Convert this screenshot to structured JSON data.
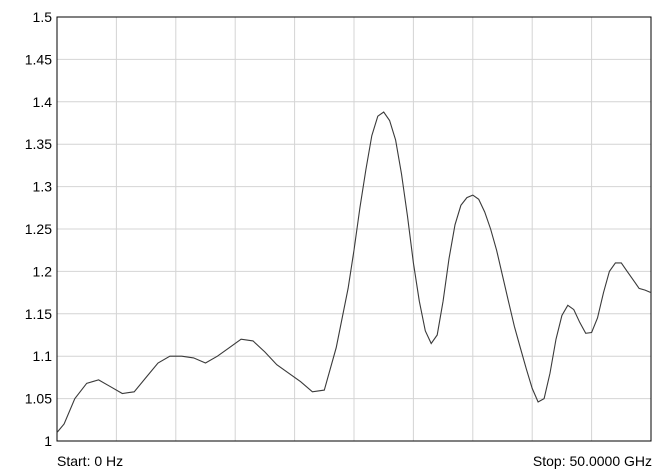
{
  "chart_data": {
    "type": "line",
    "title": "",
    "xlabel": "",
    "ylabel": "",
    "xlim": [
      0,
      50
    ],
    "x_unit": "GHz",
    "ylim": [
      1,
      1.5
    ],
    "yticks": [
      "1",
      "1.05",
      "1.1",
      "1.15",
      "1.2",
      "1.25",
      "1.3",
      "1.35",
      "1.4",
      "1.45",
      "1.5"
    ],
    "x_grid_divisions": 10,
    "grid": true,
    "legend": "none",
    "start_label": "Start: 0 Hz",
    "stop_label": "Stop: 50.0000 GHz",
    "series": [
      {
        "color": "#3a3a3a",
        "x": [
          0,
          0.6,
          1.5,
          2.5,
          3.5,
          4.5,
          5.5,
          6.5,
          7.5,
          8.5,
          9.5,
          10.5,
          11.5,
          12.5,
          13.5,
          14.5,
          15.5,
          16.5,
          17.5,
          18.5,
          19.5,
          20.5,
          21.5,
          22.5,
          23.5,
          24.5,
          25.0,
          25.5,
          26.0,
          26.5,
          27.0,
          27.5,
          28.0,
          28.5,
          29.0,
          29.5,
          30.0,
          30.5,
          31.0,
          31.5,
          32.0,
          32.5,
          33.0,
          33.5,
          34.0,
          34.5,
          35.0,
          35.5,
          36.0,
          36.5,
          37.0,
          37.5,
          38.0,
          38.5,
          39.0,
          39.5,
          40.0,
          40.5,
          41.0,
          41.5,
          42.0,
          42.5,
          43.0,
          43.5,
          44.0,
          44.5,
          45.0,
          45.5,
          46.0,
          46.5,
          47.0,
          47.5,
          48.0,
          48.5,
          49.0,
          49.5,
          50.0
        ],
        "y": [
          1.01,
          1.02,
          1.05,
          1.068,
          1.072,
          1.064,
          1.056,
          1.058,
          1.075,
          1.092,
          1.1,
          1.1,
          1.098,
          1.092,
          1.1,
          1.11,
          1.12,
          1.118,
          1.105,
          1.09,
          1.08,
          1.07,
          1.058,
          1.06,
          1.11,
          1.18,
          1.225,
          1.275,
          1.32,
          1.36,
          1.383,
          1.388,
          1.378,
          1.355,
          1.315,
          1.265,
          1.21,
          1.165,
          1.13,
          1.115,
          1.125,
          1.165,
          1.215,
          1.255,
          1.278,
          1.287,
          1.29,
          1.285,
          1.27,
          1.25,
          1.225,
          1.195,
          1.165,
          1.135,
          1.11,
          1.085,
          1.062,
          1.046,
          1.05,
          1.08,
          1.12,
          1.148,
          1.16,
          1.155,
          1.14,
          1.127,
          1.128,
          1.145,
          1.175,
          1.2,
          1.21,
          1.21,
          1.2,
          1.19,
          1.18,
          1.178,
          1.175
        ]
      }
    ]
  }
}
